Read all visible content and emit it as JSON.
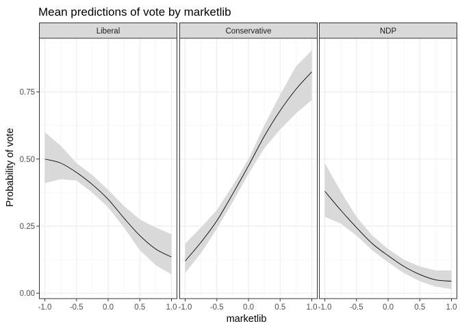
{
  "chart_data": {
    "type": "line",
    "title": "Mean predictions of vote by marketlib",
    "xlabel": "marketlib",
    "ylabel": "Probability of vote",
    "xlim": [
      -1.0,
      1.0
    ],
    "ylim": [
      -0.02,
      0.95
    ],
    "x_ticks": [
      "-1.0",
      "-0.5",
      "0.0",
      "0.5",
      "1.0"
    ],
    "y_ticks": [
      "0.00",
      "0.25",
      "0.50",
      "0.75"
    ],
    "grid": true,
    "confidence_band_color": "#d9d9d9",
    "line_color": "#000000",
    "strip_fill": "#d9d9d9",
    "panels": [
      {
        "label": "Liberal",
        "x": [
          -1.0,
          -0.75,
          -0.5,
          -0.25,
          0.0,
          0.25,
          0.5,
          0.75,
          1.0
        ],
        "y": [
          0.5,
          0.485,
          0.45,
          0.405,
          0.35,
          0.28,
          0.215,
          0.165,
          0.135
        ],
        "lower": [
          0.41,
          0.425,
          0.42,
          0.375,
          0.32,
          0.245,
          0.16,
          0.105,
          0.07
        ],
        "upper": [
          0.6,
          0.55,
          0.485,
          0.44,
          0.385,
          0.325,
          0.275,
          0.245,
          0.22
        ]
      },
      {
        "label": "Conservative",
        "x": [
          -1.0,
          -0.75,
          -0.5,
          -0.25,
          0.0,
          0.25,
          0.5,
          0.75,
          1.0
        ],
        "y": [
          0.12,
          0.19,
          0.27,
          0.37,
          0.475,
          0.585,
          0.68,
          0.76,
          0.825
        ],
        "lower": [
          0.075,
          0.15,
          0.24,
          0.34,
          0.445,
          0.54,
          0.61,
          0.67,
          0.72
        ],
        "upper": [
          0.185,
          0.245,
          0.31,
          0.4,
          0.5,
          0.625,
          0.74,
          0.845,
          0.905
        ]
      },
      {
        "label": "NDP",
        "x": [
          -1.0,
          -0.75,
          -0.5,
          -0.25,
          0.0,
          0.25,
          0.5,
          0.75,
          1.0
        ],
        "y": [
          0.38,
          0.31,
          0.245,
          0.185,
          0.14,
          0.1,
          0.07,
          0.05,
          0.045
        ],
        "lower": [
          0.285,
          0.26,
          0.215,
          0.16,
          0.115,
          0.075,
          0.045,
          0.025,
          0.015
        ],
        "upper": [
          0.485,
          0.38,
          0.285,
          0.215,
          0.165,
          0.125,
          0.1,
          0.085,
          0.085
        ]
      }
    ]
  }
}
